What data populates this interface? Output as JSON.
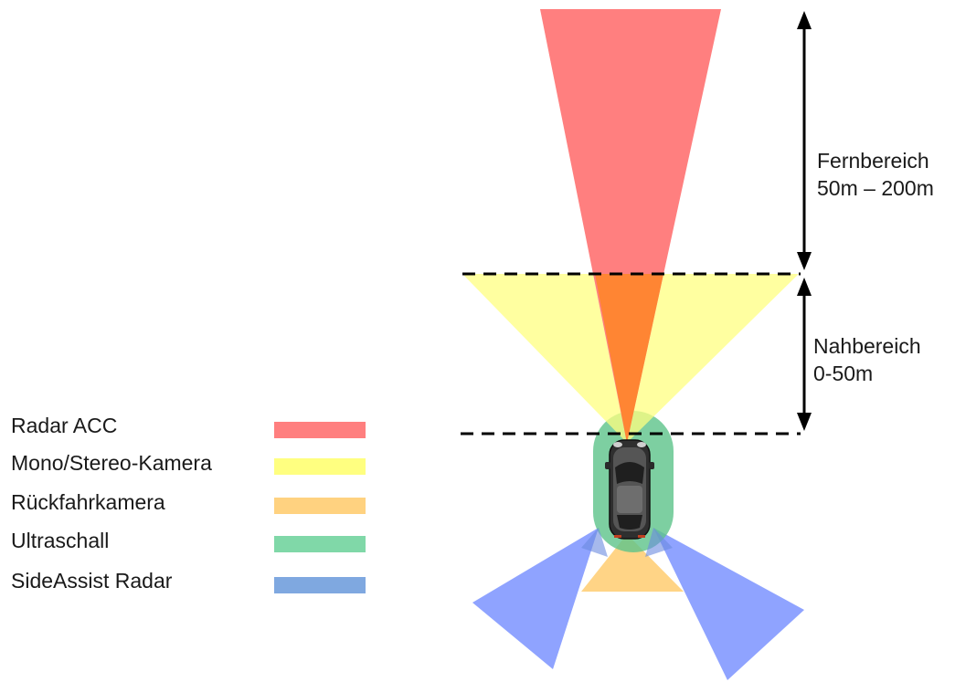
{
  "ranges": {
    "far": {
      "line1": "Fernbereich",
      "line2": "50m – 200m"
    },
    "near": {
      "line1": "Nahbereich",
      "line2": "0-50m"
    }
  },
  "legend": [
    {
      "label": "Radar ACC",
      "color": "#ff7f7f"
    },
    {
      "label": "Mono/Stereo-Kamera",
      "color": "#ffff80"
    },
    {
      "label": "Rückfahrkamera",
      "color": "#ffd280"
    },
    {
      "label": "Ultraschall",
      "color": "#80d8a8"
    },
    {
      "label": "SideAssist Radar",
      "color": "#7fa8e0"
    }
  ],
  "colors": {
    "radar_acc": "#ff7f7f",
    "camera": "#ffff80",
    "overlap": "#ff8533",
    "rear_camera": "#ffd280",
    "ultrasound": "#5cc389",
    "side_radar": "#7b93ff",
    "car_body": "#3a3a3a"
  },
  "icons": {
    "car": "car-top-view-icon"
  }
}
